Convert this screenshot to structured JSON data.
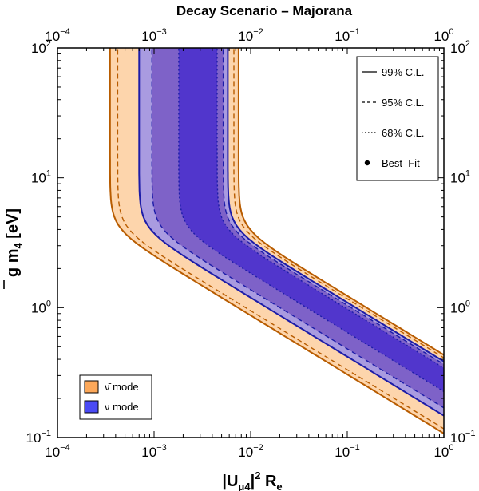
{
  "chart_data": {
    "type": "area",
    "title": "Decay Scenario – Majorana",
    "xlabel": "|Uμ4|² Re",
    "ylabel": "ḡ m4 [eV]",
    "x_scale": "log",
    "y_scale": "log",
    "xlim": [
      0.0001,
      1
    ],
    "ylim": [
      0.1,
      100
    ],
    "x_ticks": [
      {
        "base": "10",
        "exp": "−4",
        "value": 0.0001
      },
      {
        "base": "10",
        "exp": "−3",
        "value": 0.001
      },
      {
        "base": "10",
        "exp": "−2",
        "value": 0.01
      },
      {
        "base": "10",
        "exp": "−1",
        "value": 0.1
      },
      {
        "base": "10",
        "exp": "0",
        "value": 1
      }
    ],
    "y_ticks": [
      {
        "base": "10",
        "exp": "−1",
        "value": 0.1
      },
      {
        "base": "10",
        "exp": "0",
        "value": 1
      },
      {
        "base": "10",
        "exp": "1",
        "value": 10
      },
      {
        "base": "10",
        "exp": "2",
        "value": 100
      }
    ],
    "band_model": "x = a at large y; x = a*(y_knee/y)^2 below the knee, y_knee = 4 eV",
    "series": [
      {
        "name": "ν̄ mode",
        "color": "#fdd5ac",
        "edge_color": "#b85c00",
        "cl": "99% C.L.",
        "a_left": 0.00035,
        "a_right": 0.0075
      },
      {
        "name": "ν̄ mode",
        "color": "#fdd5ac",
        "edge_color": "#b85c00",
        "cl": "95% C.L.",
        "a_left": 0.00042,
        "a_right": 0.0067
      },
      {
        "name": "ν mode",
        "color": "#a99be0",
        "edge_color": "#1c1ca8",
        "cl": "99% C.L.",
        "a_left": 0.0007,
        "a_right": 0.0058
      },
      {
        "name": "ν mode",
        "color": "#7e62c8",
        "edge_color": "#1c1ca8",
        "cl": "95% C.L.",
        "a_left": 0.00095,
        "a_right": 0.0052
      },
      {
        "name": "ν mode",
        "color": "#5136cc",
        "edge_color": "#1c1ca8",
        "cl": "68% C.L.",
        "a_left": 0.0018,
        "a_right": 0.0045
      }
    ]
  },
  "legend_styles": {
    "title": "",
    "items": [
      {
        "label": "99% C.L.",
        "dash": "solid"
      },
      {
        "label": "95% C.L.",
        "dash": "dashed"
      },
      {
        "label": "68% C.L.",
        "dash": "dotted"
      },
      {
        "label": "Best–Fit",
        "dash": "dot"
      }
    ]
  },
  "legend_modes": {
    "items": [
      {
        "label": "ν̄ mode",
        "color": "#fca85a"
      },
      {
        "label": "ν mode",
        "color": "#4a4af4"
      }
    ]
  }
}
